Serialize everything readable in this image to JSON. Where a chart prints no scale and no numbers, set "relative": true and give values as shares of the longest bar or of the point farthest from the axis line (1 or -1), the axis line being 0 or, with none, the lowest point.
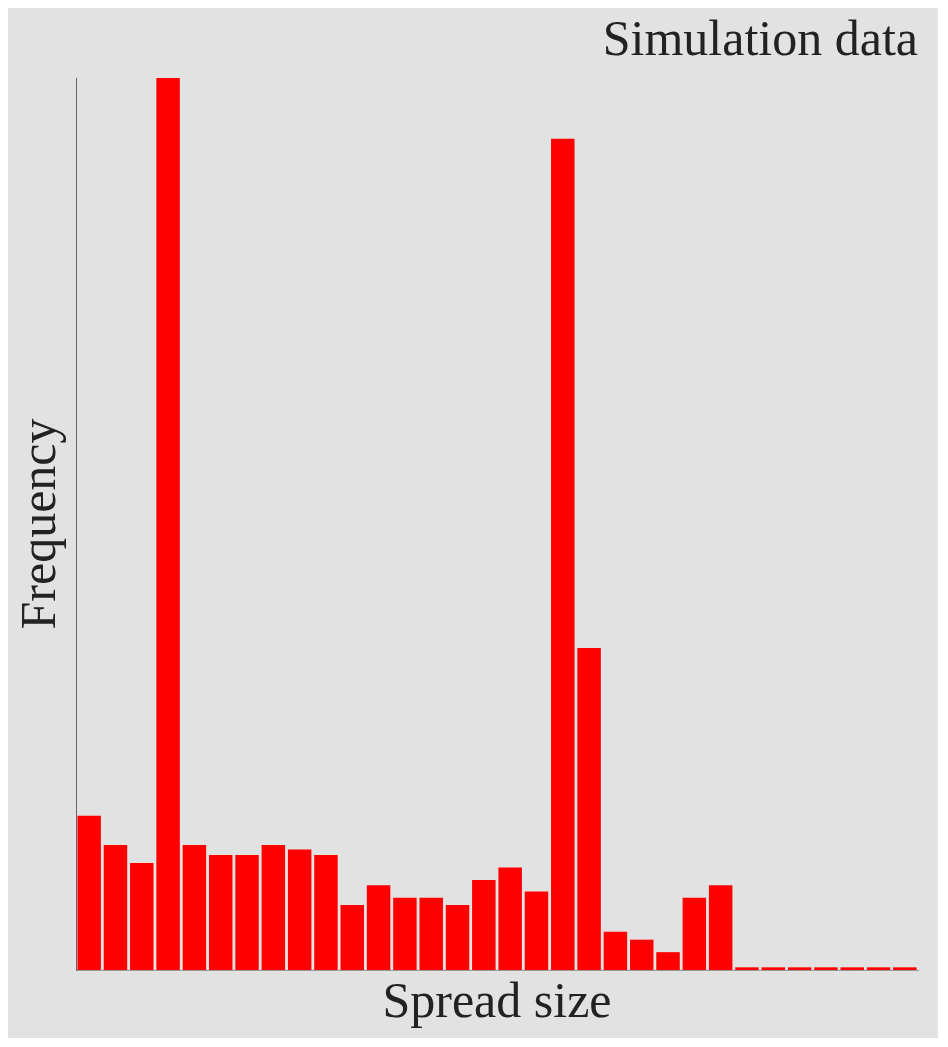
{
  "chart_data": {
    "type": "bar",
    "title": "Simulation data",
    "xlabel": "Spread size",
    "ylabel": "Frequency",
    "relative": true,
    "color": "#ff0000",
    "categories": [
      null,
      null,
      null,
      null,
      null,
      null,
      null,
      null,
      null,
      null,
      null,
      null,
      null,
      null,
      null,
      null,
      null,
      null,
      null,
      null,
      null,
      null,
      null,
      null,
      null,
      null,
      null,
      null,
      null,
      null,
      null,
      null
    ],
    "values": [
      0.173,
      0.14,
      0.12,
      1,
      0.14,
      0.129,
      0.129,
      0.14,
      0.135,
      0.129,
      0.073,
      0.095,
      0.081,
      0.081,
      0.073,
      0.101,
      0.115,
      0.088,
      0.932,
      0.361,
      0.043,
      0.034,
      0.02,
      0.081,
      0.095,
      0.003,
      0.003,
      0.003,
      0.003,
      0.003,
      0.003,
      0.003
    ],
    "grid": false,
    "legend": false
  }
}
